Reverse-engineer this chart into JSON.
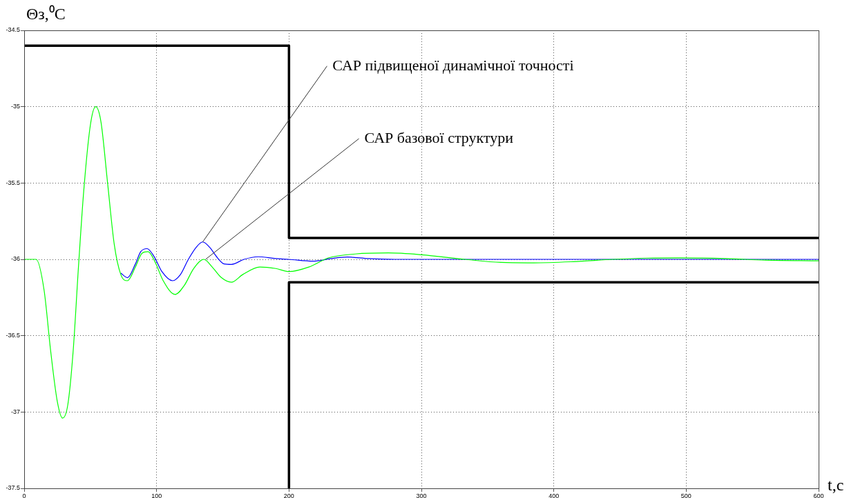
{
  "chart_data": {
    "type": "line",
    "xlabel": "t,с",
    "ylabel": "Θз,⁰C",
    "xlim": [
      0,
      600
    ],
    "xticks": [
      0,
      100,
      200,
      300,
      400,
      500,
      600
    ],
    "ylim": [
      -37.5,
      -34.5
    ],
    "yticks": [
      -34.5,
      -35,
      -35.5,
      -36,
      -36.5,
      -37,
      -37.5
    ],
    "grid": true,
    "legend": false,
    "marker": "none",
    "line_style": "solid",
    "series": [
      {
        "color": "#000000",
        "x": [
          0,
          200,
          200,
          600
        ],
        "values": [
          -34.6,
          -34.6,
          -35.86,
          -35.86
        ]
      },
      {
        "color": "#000000",
        "x": [
          200,
          200,
          600
        ],
        "values": [
          -37.5,
          -36.15,
          -36.15
        ]
      },
      {
        "color": "#00ff00",
        "x": [
          0,
          9,
          15,
          20,
          25,
          29,
          33,
          37,
          41,
          45,
          50,
          54,
          58,
          63,
          68,
          73,
          78,
          84,
          89,
          93.6,
          99,
          105,
          114,
          121,
          128,
          135.7,
          142,
          149,
          156.5,
          165,
          178,
          190,
          200,
          215,
          230,
          250,
          275,
          300,
          333,
          360,
          385,
          415,
          445,
          470,
          495,
          530,
          560,
          600
        ],
        "values": [
          -36,
          -36,
          -36.2,
          -36.6,
          -36.93,
          -37.04,
          -36.95,
          -36.6,
          -36.05,
          -35.55,
          -35.12,
          -35.0,
          -35.1,
          -35.5,
          -35.9,
          -36.1,
          -36.14,
          -36.05,
          -35.96,
          -35.95,
          -36.02,
          -36.14,
          -36.23,
          -36.17,
          -36.06,
          -36.0,
          -36.05,
          -36.12,
          -36.15,
          -36.1,
          -36.05,
          -36.06,
          -36.08,
          -36.05,
          -35.99,
          -35.965,
          -35.958,
          -35.97,
          -36,
          -36.02,
          -36.023,
          -36.015,
          -36,
          -35.992,
          -35.99,
          -35.995,
          -36.005,
          -36.01
        ]
      },
      {
        "color": "#0000ff",
        "x": [
          73,
          78,
          84,
          88,
          92.8,
          98,
          104,
          112,
          118,
          124,
          130,
          134.8,
          140,
          146,
          151,
          156.5,
          166,
          176.5,
          190,
          200,
          218,
          232,
          244,
          260,
          280,
          300,
          600
        ],
        "values": [
          -36.09,
          -36.12,
          -36.03,
          -35.95,
          -35.93,
          -35.98,
          -36.08,
          -36.14,
          -36.1,
          -36.0,
          -35.92,
          -35.886,
          -35.92,
          -35.99,
          -36.03,
          -36.033,
          -36.0,
          -35.983,
          -35.995,
          -36,
          -36.012,
          -35.995,
          -35.985,
          -35.995,
          -36,
          -36,
          -36
        ]
      }
    ],
    "annotations": [
      {
        "text": "САР підвищеної динамічної точності",
        "x": 134.8,
        "y": -35.886
      },
      {
        "text": "САР базової структури",
        "x": 137,
        "y": -36.0
      }
    ]
  }
}
